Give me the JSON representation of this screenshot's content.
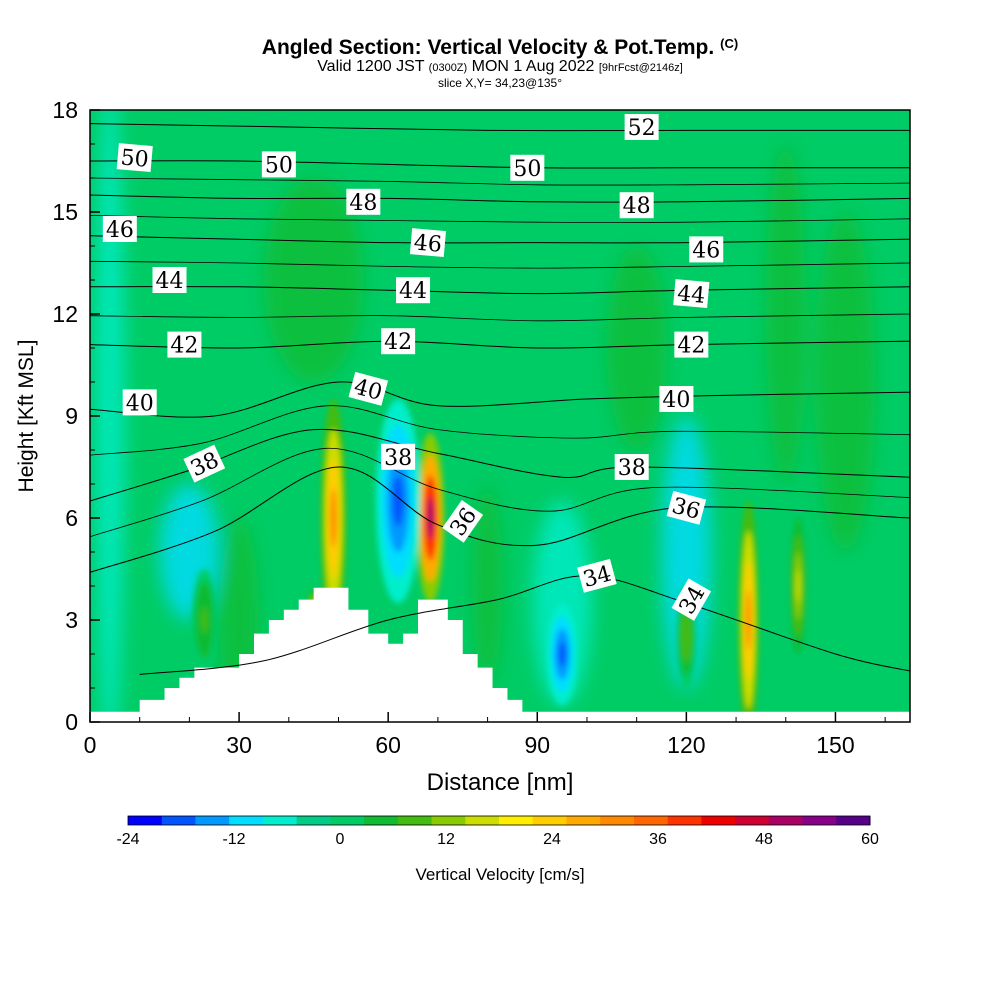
{
  "title": {
    "main": "Angled Section: Vertical Velocity & Pot.Temp.",
    "copyright": "(C)",
    "valid_a": "Valid 1200 JST",
    "valid_utc": "(0300Z)",
    "valid_b": "MON 1 Aug 2022",
    "forecast": "[9hrFcst@2146z]",
    "slice": "slice X,Y= 34,23@135°"
  },
  "chart_data": {
    "type": "heatmap",
    "xlabel": "Distance [nm]",
    "ylabel": "Height [Kft MSL]",
    "xlim": [
      0,
      165
    ],
    "ylim": [
      0,
      18
    ],
    "xticks": [
      0,
      30,
      60,
      90,
      120,
      150
    ],
    "yticks": [
      0,
      3,
      6,
      9,
      12,
      15,
      18
    ],
    "colorbar": {
      "label": "Vertical Velocity [cm/s]",
      "ticks": [
        -24,
        -12,
        0,
        12,
        24,
        36,
        48,
        60
      ],
      "colors": [
        "#0000ff",
        "#0055ff",
        "#0099ff",
        "#00ddff",
        "#00eecc",
        "#00cc88",
        "#00cc66",
        "#11bb33",
        "#44bb11",
        "#88cc00",
        "#ccdd00",
        "#ffee00",
        "#ffcc00",
        "#ffaa00",
        "#ff8800",
        "#ff6600",
        "#ff3300",
        "#ee0000",
        "#cc0033",
        "#aa0066",
        "#880088",
        "#550088"
      ]
    },
    "terrain_kft": {
      "x": [
        0,
        10,
        10,
        15,
        15,
        18,
        18,
        21,
        21,
        30,
        30,
        33,
        33,
        36,
        36,
        39,
        39,
        42,
        42,
        45,
        45,
        52,
        52,
        56,
        56,
        60,
        60,
        63,
        63,
        66,
        66,
        72,
        72,
        75,
        75,
        78,
        78,
        81,
        81,
        84,
        84,
        87,
        87,
        90,
        90,
        165
      ],
      "y": [
        0.3,
        0.3,
        0.65,
        0.65,
        1.0,
        1.0,
        1.3,
        1.3,
        1.6,
        1.6,
        2.0,
        2.0,
        2.6,
        2.6,
        3.0,
        3.0,
        3.3,
        3.3,
        3.6,
        3.6,
        3.95,
        3.95,
        3.3,
        3.3,
        2.6,
        2.6,
        2.3,
        2.3,
        2.6,
        2.6,
        3.6,
        3.6,
        3.0,
        3.0,
        2.0,
        2.0,
        1.6,
        1.6,
        1.0,
        1.0,
        0.65,
        0.65,
        0.3,
        0.3,
        0.3,
        0.3
      ]
    },
    "theta_contours": [
      {
        "label": "34",
        "x": [
          10,
          35,
          60,
          82,
          100,
          120,
          150,
          165
        ],
        "y": [
          1.4,
          1.8,
          3.0,
          3.6,
          4.3,
          3.5,
          2.0,
          1.5
        ]
      },
      {
        "label": "36",
        "x": [
          0,
          25,
          50,
          70,
          90,
          118,
          165
        ],
        "y": [
          4.4,
          5.6,
          7.5,
          5.8,
          5.2,
          6.3,
          6.0
        ]
      },
      {
        "label": "38",
        "x": [
          0,
          20,
          45,
          70,
          95,
          110,
          165
        ],
        "y": [
          6.5,
          7.4,
          8.6,
          7.9,
          7.2,
          7.5,
          7.2
        ]
      },
      {
        "label": "40",
        "x": [
          0,
          25,
          50,
          70,
          100,
          125,
          165
        ],
        "y": [
          9.2,
          9.0,
          10.0,
          9.3,
          9.5,
          9.6,
          9.7
        ]
      },
      {
        "label": "42",
        "x": [
          0,
          30,
          60,
          90,
          120,
          165
        ],
        "y": [
          11.1,
          11.0,
          11.2,
          11.0,
          11.1,
          11.2
        ]
      },
      {
        "label": "44",
        "x": [
          0,
          30,
          60,
          90,
          120,
          165
        ],
        "y": [
          12.8,
          12.8,
          12.7,
          12.6,
          12.7,
          12.8
        ]
      },
      {
        "label": "46",
        "x": [
          0,
          30,
          60,
          90,
          120,
          165
        ],
        "y": [
          14.3,
          14.2,
          14.1,
          14.1,
          14.1,
          14.2
        ]
      },
      {
        "label": "48",
        "x": [
          0,
          30,
          60,
          90,
          120,
          165
        ],
        "y": [
          15.5,
          15.4,
          15.4,
          15.3,
          15.3,
          15.4
        ]
      },
      {
        "label": "50",
        "x": [
          0,
          30,
          60,
          90,
          120,
          165
        ],
        "y": [
          16.5,
          16.5,
          16.4,
          16.3,
          16.3,
          16.3
        ]
      },
      {
        "label": "52",
        "x": [
          0,
          40,
          80,
          120,
          165
        ],
        "y": [
          17.6,
          17.5,
          17.4,
          17.4,
          17.4
        ]
      }
    ],
    "contour_labels": [
      {
        "text": "50",
        "x": 9,
        "y": 16.6,
        "angle": 5
      },
      {
        "text": "50",
        "x": 38,
        "y": 16.4,
        "angle": 0
      },
      {
        "text": "50",
        "x": 88,
        "y": 16.3,
        "angle": 0
      },
      {
        "text": "52",
        "x": 111,
        "y": 17.5,
        "angle": 0
      },
      {
        "text": "48",
        "x": 55,
        "y": 15.3,
        "angle": 0
      },
      {
        "text": "48",
        "x": 110,
        "y": 15.2,
        "angle": 0
      },
      {
        "text": "46",
        "x": 6,
        "y": 14.5,
        "angle": 0
      },
      {
        "text": "46",
        "x": 68,
        "y": 14.1,
        "angle": 5
      },
      {
        "text": "46",
        "x": 124,
        "y": 13.9,
        "angle": 0
      },
      {
        "text": "44",
        "x": 16,
        "y": 13.0,
        "angle": 0
      },
      {
        "text": "44",
        "x": 65,
        "y": 12.7,
        "angle": 0
      },
      {
        "text": "44",
        "x": 121,
        "y": 12.6,
        "angle": 5
      },
      {
        "text": "42",
        "x": 19,
        "y": 11.1,
        "angle": 0
      },
      {
        "text": "42",
        "x": 62,
        "y": 11.2,
        "angle": 0
      },
      {
        "text": "42",
        "x": 121,
        "y": 11.1,
        "angle": 0
      },
      {
        "text": "40",
        "x": 10,
        "y": 9.4,
        "angle": 0
      },
      {
        "text": "40",
        "x": 56,
        "y": 9.8,
        "angle": 15
      },
      {
        "text": "40",
        "x": 118,
        "y": 9.5,
        "angle": 0
      },
      {
        "text": "38",
        "x": 23,
        "y": 7.6,
        "angle": -25
      },
      {
        "text": "38",
        "x": 62,
        "y": 7.8,
        "angle": 0
      },
      {
        "text": "38",
        "x": 109,
        "y": 7.5,
        "angle": 0
      },
      {
        "text": "36",
        "x": 75,
        "y": 5.9,
        "angle": -55
      },
      {
        "text": "36",
        "x": 120,
        "y": 6.3,
        "angle": 15
      },
      {
        "text": "34",
        "x": 102,
        "y": 4.3,
        "angle": -15
      },
      {
        "text": "34",
        "x": 121,
        "y": 3.6,
        "angle": -60
      }
    ],
    "velocity_cells": [
      {
        "cx": 49,
        "cy": 6.0,
        "rx": 2.5,
        "ry": 3.5,
        "value": 30
      },
      {
        "cx": 68.5,
        "cy": 6.0,
        "rx": 2.8,
        "ry": 2.5,
        "value": 52
      },
      {
        "cx": 62,
        "cy": 6.5,
        "rx": 4.5,
        "ry": 3.0,
        "value": -20
      },
      {
        "cx": 132.5,
        "cy": 3.0,
        "rx": 2.0,
        "ry": 3.5,
        "value": 33
      },
      {
        "cx": 142.5,
        "cy": 4.0,
        "rx": 1.6,
        "ry": 2.0,
        "value": 15
      },
      {
        "cx": 95,
        "cy": 2.0,
        "rx": 3.0,
        "ry": 1.5,
        "value": -20
      },
      {
        "cx": 45,
        "cy": 3.5,
        "rx": 1.2,
        "ry": 0.4,
        "value": 14
      },
      {
        "cx": 23,
        "cy": 3.0,
        "rx": 2.5,
        "ry": 1.5,
        "value": 8
      },
      {
        "cx": 120,
        "cy": 2.5,
        "rx": 2.0,
        "ry": 1.5,
        "value": 10
      }
    ]
  }
}
